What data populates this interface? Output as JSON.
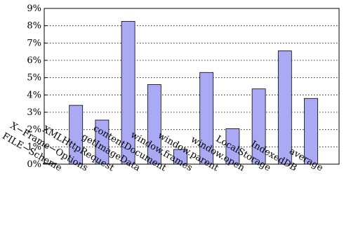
{
  "chart_data": {
    "type": "bar",
    "title": "",
    "xlabel": "",
    "ylabel": "",
    "categories": [
      "FILE−Scheme",
      "X−Frame−Options",
      "XMLHttpRequest",
      "getImageData",
      "contentDocument",
      "window.frames",
      "window.parent",
      "window.open",
      "LocalStorage",
      "IndexedDB",
      "average"
    ],
    "values": [
      0.05,
      3.4,
      2.55,
      8.25,
      4.6,
      0.85,
      5.3,
      2.05,
      4.35,
      6.55,
      3.8
    ],
    "ylim": [
      0,
      9
    ],
    "yticks": [
      0,
      1,
      2,
      3,
      4,
      5,
      6,
      7,
      8,
      9
    ],
    "ytick_labels": [
      "0%",
      "1%",
      "2%",
      "3%",
      "4%",
      "5%",
      "6%",
      "7%",
      "8%",
      "9%"
    ],
    "grid": "horizontal-dotted",
    "legend": "none",
    "bar_color": "#aaaaf4",
    "bar_edge_color": "#000000"
  }
}
